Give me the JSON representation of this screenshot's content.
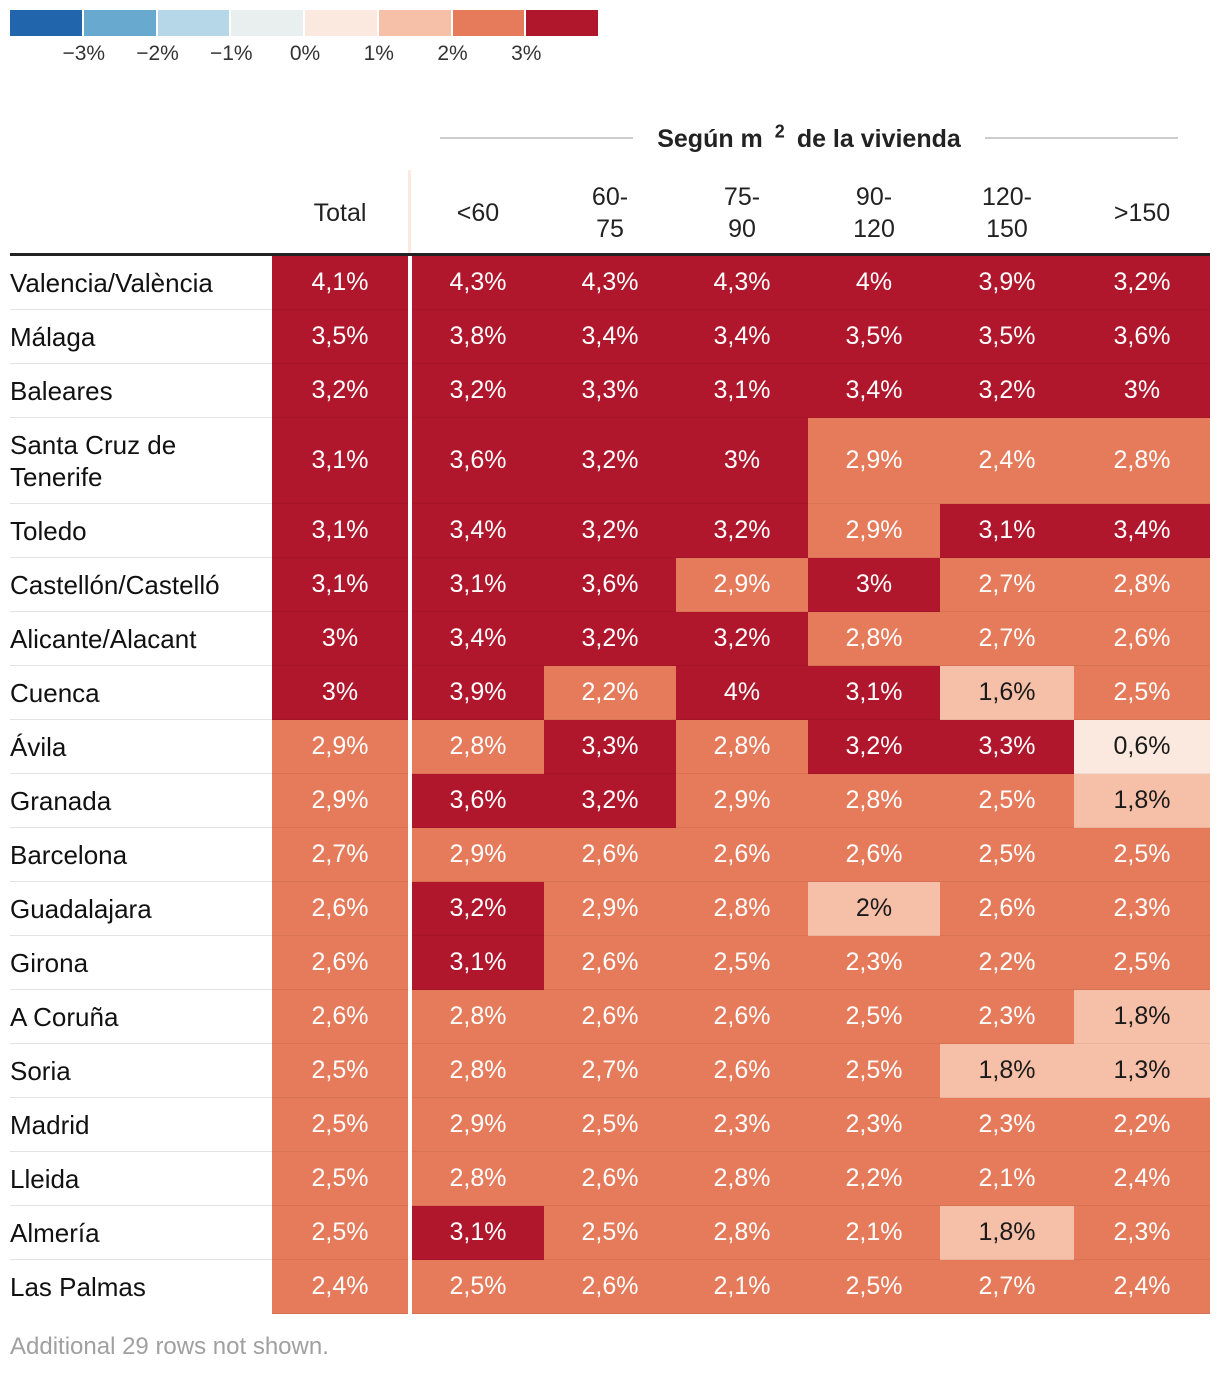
{
  "legend": {
    "colors": [
      "#2166ac",
      "#67a9cf",
      "#b6d7e8",
      "#e8efee",
      "#fbe8de",
      "#f6bfa7",
      "#e57b5a",
      "#b0172c"
    ],
    "ticks": [
      "−3%",
      "−2%",
      "−1%",
      "0%",
      "1%",
      "2%",
      "3%"
    ]
  },
  "group_title": "Según m",
  "group_title_sup": "2",
  "group_title_rest": "de la vivienda",
  "columns": [
    {
      "label": "Total"
    },
    {
      "label_lines": [
        "<60"
      ]
    },
    {
      "label_lines": [
        "60-",
        "75"
      ]
    },
    {
      "label_lines": [
        "75-",
        "90"
      ]
    },
    {
      "label_lines": [
        "90-",
        "120"
      ]
    },
    {
      "label_lines": [
        "120-",
        "150"
      ]
    },
    {
      "label_lines": [
        ">150"
      ]
    }
  ],
  "chart_data": {
    "type": "table",
    "title": "Según m2 de la vivienda",
    "color_scale": {
      "min": -3,
      "max": 3,
      "unit": "%"
    },
    "columns": [
      "Total",
      "<60",
      "60-75",
      "75-90",
      "90-120",
      "120-150",
      ">150"
    ],
    "rows": [
      {
        "name": "Valencia/València",
        "cells": [
          "4,1%",
          "4,3%",
          "4,3%",
          "4,3%",
          "4%",
          "3,9%",
          "3,2%"
        ],
        "values": [
          4.1,
          4.3,
          4.3,
          4.3,
          4.0,
          3.9,
          3.2
        ]
      },
      {
        "name": "Málaga",
        "cells": [
          "3,5%",
          "3,8%",
          "3,4%",
          "3,4%",
          "3,5%",
          "3,5%",
          "3,6%"
        ],
        "values": [
          3.5,
          3.8,
          3.4,
          3.4,
          3.5,
          3.5,
          3.6
        ]
      },
      {
        "name": "Baleares",
        "cells": [
          "3,2%",
          "3,2%",
          "3,3%",
          "3,1%",
          "3,4%",
          "3,2%",
          "3%"
        ],
        "values": [
          3.2,
          3.2,
          3.3,
          3.1,
          3.4,
          3.2,
          3.0
        ]
      },
      {
        "name": "Santa Cruz de Tenerife",
        "cells": [
          "3,1%",
          "3,6%",
          "3,2%",
          "3%",
          "2,9%",
          "2,4%",
          "2,8%"
        ],
        "values": [
          3.1,
          3.6,
          3.2,
          3.0,
          2.9,
          2.4,
          2.8
        ]
      },
      {
        "name": "Toledo",
        "cells": [
          "3,1%",
          "3,4%",
          "3,2%",
          "3,2%",
          "2,9%",
          "3,1%",
          "3,4%"
        ],
        "values": [
          3.1,
          3.4,
          3.2,
          3.2,
          2.9,
          3.1,
          3.4
        ]
      },
      {
        "name": "Castellón/Castelló",
        "cells": [
          "3,1%",
          "3,1%",
          "3,6%",
          "2,9%",
          "3%",
          "2,7%",
          "2,8%"
        ],
        "values": [
          3.1,
          3.1,
          3.6,
          2.9,
          3.0,
          2.7,
          2.8
        ]
      },
      {
        "name": "Alicante/Alacant",
        "cells": [
          "3%",
          "3,4%",
          "3,2%",
          "3,2%",
          "2,8%",
          "2,7%",
          "2,6%"
        ],
        "values": [
          3.0,
          3.4,
          3.2,
          3.2,
          2.8,
          2.7,
          2.6
        ]
      },
      {
        "name": "Cuenca",
        "cells": [
          "3%",
          "3,9%",
          "2,2%",
          "4%",
          "3,1%",
          "1,6%",
          "2,5%"
        ],
        "values": [
          2.96,
          3.9,
          2.2,
          4.0,
          3.1,
          1.6,
          2.5
        ]
      },
      {
        "name": "Ávila",
        "cells": [
          "2,9%",
          "2,8%",
          "3,3%",
          "2,8%",
          "3,2%",
          "3,3%",
          "0,6%"
        ],
        "values": [
          2.9,
          2.8,
          3.3,
          2.8,
          3.2,
          3.3,
          0.6
        ]
      },
      {
        "name": "Granada",
        "cells": [
          "2,9%",
          "3,6%",
          "3,2%",
          "2,9%",
          "2,8%",
          "2,5%",
          "1,8%"
        ],
        "values": [
          2.9,
          3.6,
          3.2,
          2.9,
          2.8,
          2.5,
          1.8
        ]
      },
      {
        "name": "Barcelona",
        "cells": [
          "2,7%",
          "2,9%",
          "2,6%",
          "2,6%",
          "2,6%",
          "2,5%",
          "2,5%"
        ],
        "values": [
          2.7,
          2.9,
          2.6,
          2.6,
          2.6,
          2.5,
          2.5
        ]
      },
      {
        "name": "Guadalajara",
        "cells": [
          "2,6%",
          "3,2%",
          "2,9%",
          "2,8%",
          "2%",
          "2,6%",
          "2,3%"
        ],
        "values": [
          2.6,
          3.2,
          2.9,
          2.8,
          2.0,
          2.6,
          2.3
        ]
      },
      {
        "name": "Girona",
        "cells": [
          "2,6%",
          "3,1%",
          "2,6%",
          "2,5%",
          "2,3%",
          "2,2%",
          "2,5%"
        ],
        "values": [
          2.6,
          3.1,
          2.6,
          2.5,
          2.3,
          2.2,
          2.5
        ]
      },
      {
        "name": "A Coruña",
        "cells": [
          "2,6%",
          "2,8%",
          "2,6%",
          "2,6%",
          "2,5%",
          "2,3%",
          "1,8%"
        ],
        "values": [
          2.6,
          2.8,
          2.6,
          2.6,
          2.5,
          2.3,
          1.8
        ]
      },
      {
        "name": "Soria",
        "cells": [
          "2,5%",
          "2,8%",
          "2,7%",
          "2,6%",
          "2,5%",
          "1,8%",
          "1,3%"
        ],
        "values": [
          2.5,
          2.8,
          2.7,
          2.6,
          2.5,
          1.8,
          1.3
        ]
      },
      {
        "name": "Madrid",
        "cells": [
          "2,5%",
          "2,9%",
          "2,5%",
          "2,3%",
          "2,3%",
          "2,3%",
          "2,2%"
        ],
        "values": [
          2.5,
          2.9,
          2.5,
          2.3,
          2.3,
          2.3,
          2.2
        ]
      },
      {
        "name": "Lleida",
        "cells": [
          "2,5%",
          "2,8%",
          "2,6%",
          "2,8%",
          "2,2%",
          "2,1%",
          "2,4%"
        ],
        "values": [
          2.5,
          2.8,
          2.6,
          2.8,
          2.2,
          2.1,
          2.4
        ]
      },
      {
        "name": "Almería",
        "cells": [
          "2,5%",
          "3,1%",
          "2,5%",
          "2,8%",
          "2,1%",
          "1,8%",
          "2,3%"
        ],
        "values": [
          2.5,
          3.1,
          2.5,
          2.8,
          2.1,
          1.8,
          2.3
        ]
      },
      {
        "name": "Las Palmas",
        "cells": [
          "2,4%",
          "2,5%",
          "2,6%",
          "2,1%",
          "2,5%",
          "2,7%",
          "2,4%"
        ],
        "values": [
          2.4,
          2.5,
          2.6,
          2.1,
          2.5,
          2.7,
          2.4
        ]
      }
    ]
  },
  "footnote": "Additional 29 rows not shown."
}
